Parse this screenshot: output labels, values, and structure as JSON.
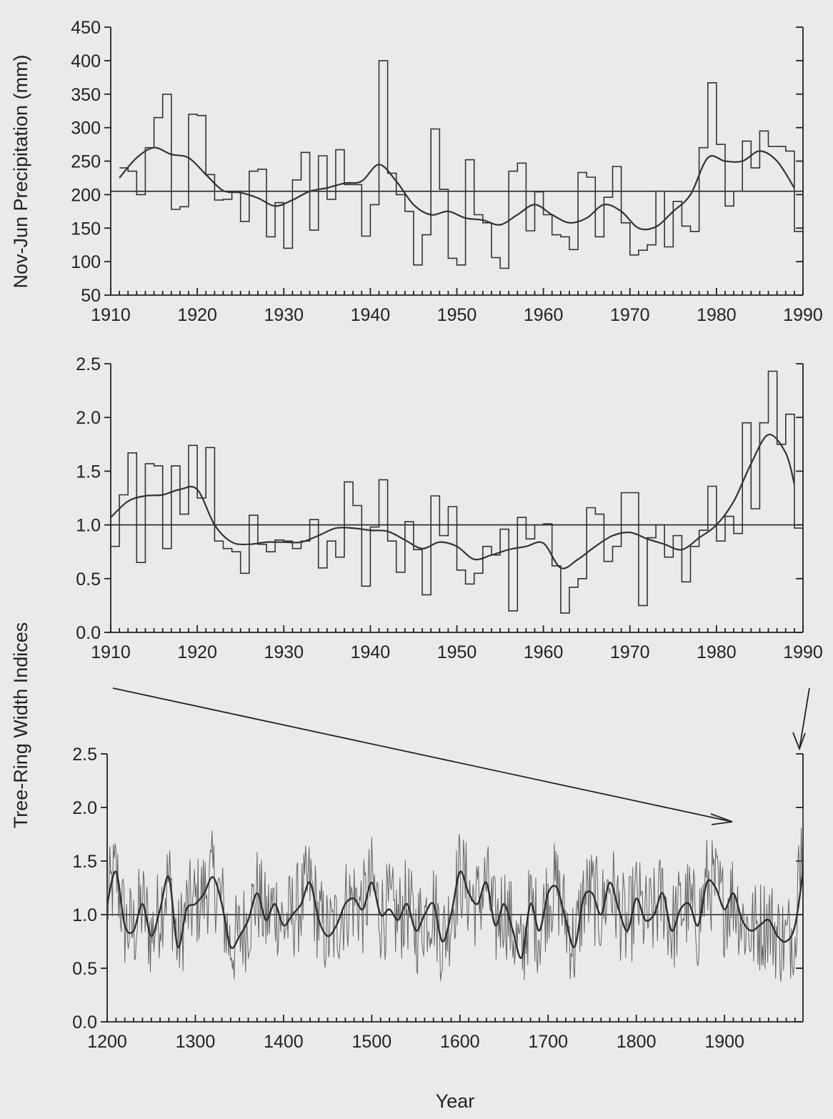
{
  "colors": {
    "background": "#eaeaea",
    "ink": "#222222"
  },
  "chart_data": [
    {
      "type": "line",
      "ylabel": "Nov-Jun Precipitation (mm)",
      "xlabel": "",
      "xlim": [
        1910,
        1990
      ],
      "ylim": [
        50,
        450
      ],
      "x_ticks": [
        "1910",
        "1920",
        "1930",
        "1940",
        "1950",
        "1960",
        "1970",
        "1980",
        "1990"
      ],
      "y_ticks": [
        "50",
        "100",
        "150",
        "200",
        "250",
        "300",
        "350",
        "400",
        "450"
      ],
      "reference_line": 205,
      "series": [
        {
          "style": "step",
          "x": [
            1911,
            1912,
            1913,
            1914,
            1915,
            1916,
            1917,
            1918,
            1919,
            1920,
            1921,
            1922,
            1923,
            1924,
            1925,
            1926,
            1927,
            1928,
            1929,
            1930,
            1931,
            1932,
            1933,
            1934,
            1935,
            1936,
            1937,
            1938,
            1939,
            1940,
            1941,
            1942,
            1943,
            1944,
            1945,
            1946,
            1947,
            1948,
            1949,
            1950,
            1951,
            1952,
            1953,
            1954,
            1955,
            1956,
            1957,
            1958,
            1959,
            1960,
            1961,
            1962,
            1963,
            1964,
            1965,
            1966,
            1967,
            1968,
            1969,
            1970,
            1971,
            1972,
            1973,
            1974,
            1975,
            1976,
            1977,
            1978,
            1979,
            1980,
            1981,
            1982,
            1983,
            1984,
            1985,
            1986,
            1987,
            1988,
            1989,
            1990
          ],
          "values": [
            240,
            235,
            200,
            270,
            315,
            350,
            178,
            182,
            320,
            318,
            230,
            192,
            193,
            205,
            160,
            235,
            238,
            137,
            188,
            120,
            222,
            263,
            147,
            258,
            193,
            267,
            215,
            215,
            138,
            185,
            400,
            232,
            200,
            175,
            95,
            140,
            298,
            208,
            105,
            95,
            252,
            170,
            158,
            106,
            90,
            235,
            247,
            146,
            204,
            170,
            140,
            137,
            118,
            233,
            226,
            137,
            196,
            242,
            158,
            110,
            117,
            125,
            205,
            122,
            190,
            153,
            145,
            270,
            367,
            275,
            183,
            205,
            280,
            240,
            295,
            272,
            272,
            265,
            145,
            180
          ]
        },
        {
          "style": "smooth",
          "x": [
            1911,
            1913,
            1915,
            1917,
            1919,
            1921,
            1923,
            1925,
            1927,
            1929,
            1931,
            1933,
            1935,
            1937,
            1939,
            1941,
            1943,
            1945,
            1947,
            1949,
            1951,
            1953,
            1955,
            1957,
            1959,
            1961,
            1963,
            1965,
            1967,
            1969,
            1971,
            1973,
            1975,
            1977,
            1979,
            1981,
            1983,
            1985,
            1987,
            1989
          ],
          "values": [
            225,
            255,
            270,
            260,
            255,
            230,
            206,
            203,
            195,
            183,
            192,
            205,
            210,
            217,
            220,
            245,
            220,
            185,
            170,
            175,
            165,
            162,
            155,
            170,
            185,
            170,
            158,
            165,
            185,
            175,
            150,
            152,
            175,
            200,
            255,
            250,
            250,
            265,
            250,
            210
          ]
        }
      ]
    },
    {
      "type": "line",
      "ylabel": "Tree-Ring Width Indices",
      "xlabel": "",
      "xlim": [
        1910,
        1990
      ],
      "ylim": [
        0.0,
        2.5
      ],
      "x_ticks": [
        "1910",
        "1920",
        "1930",
        "1940",
        "1950",
        "1960",
        "1970",
        "1980",
        "1990"
      ],
      "y_ticks": [
        "0.0",
        "0.5",
        "1.0",
        "1.5",
        "2.0",
        "2.5"
      ],
      "reference_line": 1.0,
      "series": [
        {
          "style": "step",
          "x": [
            1910,
            1911,
            1912,
            1913,
            1914,
            1915,
            1916,
            1917,
            1918,
            1919,
            1920,
            1921,
            1922,
            1923,
            1924,
            1925,
            1926,
            1927,
            1928,
            1929,
            1930,
            1931,
            1932,
            1933,
            1934,
            1935,
            1936,
            1937,
            1938,
            1939,
            1940,
            1941,
            1942,
            1943,
            1944,
            1945,
            1946,
            1947,
            1948,
            1949,
            1950,
            1951,
            1952,
            1953,
            1954,
            1955,
            1956,
            1957,
            1958,
            1959,
            1960,
            1961,
            1962,
            1963,
            1964,
            1965,
            1966,
            1967,
            1968,
            1969,
            1970,
            1971,
            1972,
            1973,
            1974,
            1975,
            1976,
            1977,
            1978,
            1979,
            1980,
            1981,
            1982,
            1983,
            1984,
            1985,
            1986,
            1987,
            1988,
            1989
          ],
          "values": [
            0.8,
            1.28,
            1.67,
            0.65,
            1.57,
            1.55,
            0.78,
            1.55,
            1.1,
            1.74,
            1.25,
            1.72,
            0.85,
            0.78,
            0.75,
            0.55,
            1.09,
            0.82,
            0.75,
            0.86,
            0.85,
            0.78,
            0.85,
            1.05,
            0.6,
            0.85,
            0.7,
            1.4,
            1.18,
            0.43,
            0.98,
            1.42,
            0.85,
            0.56,
            1.03,
            0.77,
            0.35,
            1.27,
            0.9,
            1.17,
            0.58,
            0.45,
            0.55,
            0.8,
            0.72,
            0.96,
            0.2,
            1.07,
            0.87,
            1.0,
            1.01,
            0.62,
            0.18,
            0.42,
            0.5,
            1.16,
            1.1,
            0.66,
            0.8,
            1.3,
            1.3,
            0.25,
            0.88,
            1.0,
            0.7,
            0.9,
            0.47,
            0.8,
            0.95,
            1.36,
            0.85,
            1.08,
            0.92,
            1.95,
            1.15,
            1.95,
            2.43,
            1.75,
            2.03,
            0.97
          ]
        },
        {
          "style": "smooth",
          "x": [
            1910,
            1912,
            1914,
            1916,
            1918,
            1920,
            1922,
            1924,
            1926,
            1928,
            1930,
            1932,
            1934,
            1936,
            1938,
            1940,
            1942,
            1944,
            1946,
            1948,
            1950,
            1952,
            1954,
            1956,
            1958,
            1960,
            1962,
            1964,
            1966,
            1968,
            1970,
            1972,
            1974,
            1976,
            1978,
            1980,
            1982,
            1984,
            1986,
            1988,
            1989
          ],
          "values": [
            1.07,
            1.22,
            1.27,
            1.28,
            1.33,
            1.33,
            1.0,
            0.84,
            0.82,
            0.84,
            0.84,
            0.84,
            0.9,
            0.97,
            0.97,
            0.95,
            0.94,
            0.86,
            0.78,
            0.84,
            0.8,
            0.68,
            0.72,
            0.77,
            0.8,
            0.83,
            0.6,
            0.68,
            0.8,
            0.9,
            0.93,
            0.87,
            0.82,
            0.77,
            0.88,
            1.0,
            1.22,
            1.57,
            1.84,
            1.67,
            1.38
          ]
        }
      ]
    },
    {
      "type": "line",
      "ylabel": "",
      "xlabel": "Year",
      "xlim": [
        1200,
        1989
      ],
      "ylim": [
        0.0,
        2.5
      ],
      "x_ticks": [
        "1200",
        "1300",
        "1400",
        "1500",
        "1600",
        "1700",
        "1800",
        "1900"
      ],
      "y_ticks": [
        "0.0",
        "0.5",
        "1.0",
        "1.5",
        "2.0",
        "2.5"
      ],
      "reference_line": 1.0,
      "series": [
        {
          "style": "annual",
          "x_start": 1200,
          "x_end": 1989
        },
        {
          "style": "smooth",
          "x": [
            1200,
            1210,
            1220,
            1230,
            1240,
            1250,
            1260,
            1270,
            1280,
            1290,
            1300,
            1310,
            1320,
            1330,
            1340,
            1350,
            1360,
            1370,
            1380,
            1390,
            1400,
            1410,
            1420,
            1430,
            1440,
            1450,
            1460,
            1470,
            1480,
            1490,
            1500,
            1510,
            1520,
            1530,
            1540,
            1550,
            1560,
            1570,
            1580,
            1590,
            1600,
            1610,
            1620,
            1630,
            1640,
            1650,
            1660,
            1670,
            1680,
            1690,
            1700,
            1710,
            1720,
            1730,
            1740,
            1750,
            1760,
            1770,
            1780,
            1790,
            1800,
            1810,
            1820,
            1830,
            1840,
            1850,
            1860,
            1870,
            1880,
            1890,
            1900,
            1910,
            1920,
            1930,
            1940,
            1950,
            1960,
            1970,
            1980,
            1989
          ],
          "values": [
            1.1,
            1.4,
            0.9,
            0.85,
            1.1,
            0.8,
            1.05,
            1.35,
            0.7,
            1.05,
            1.1,
            1.2,
            1.35,
            1.1,
            0.7,
            0.8,
            0.95,
            1.2,
            0.95,
            1.1,
            0.9,
            1.0,
            1.1,
            1.3,
            0.95,
            0.8,
            0.9,
            1.1,
            1.15,
            1.05,
            1.3,
            1.0,
            1.05,
            0.95,
            1.1,
            0.85,
            1.0,
            1.1,
            0.75,
            1.0,
            1.4,
            1.2,
            1.1,
            1.3,
            0.9,
            1.1,
            0.85,
            0.6,
            1.1,
            0.85,
            1.2,
            1.25,
            0.95,
            0.7,
            1.15,
            1.2,
            1.0,
            1.3,
            1.05,
            0.85,
            1.15,
            0.95,
            1.0,
            1.2,
            0.85,
            1.05,
            1.1,
            0.9,
            1.3,
            1.25,
            1.05,
            1.2,
            0.95,
            0.85,
            0.9,
            0.95,
            0.8,
            0.75,
            0.9,
            1.4
          ]
        }
      ]
    }
  ]
}
